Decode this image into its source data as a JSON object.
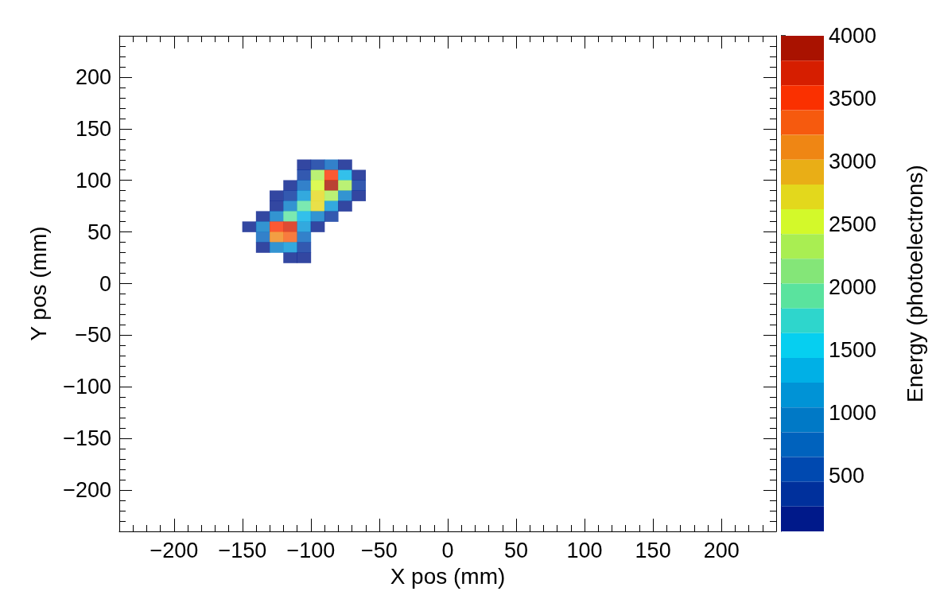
{
  "chart_data": {
    "type": "scatter",
    "marker": "square",
    "xlabel": "X pos (mm)",
    "ylabel": "Y pos (mm)",
    "clabel": "Energy (photoelectrons)",
    "xlim": [
      -240,
      240
    ],
    "ylim": [
      -240,
      240
    ],
    "xticks": [
      {
        "value": -200,
        "label": "−200"
      },
      {
        "value": -150,
        "label": "−150"
      },
      {
        "value": -100,
        "label": "−100"
      },
      {
        "value": -50,
        "label": "−50"
      },
      0,
      50,
      100,
      150,
      200
    ],
    "yticks": [
      {
        "value": -200,
        "label": "−200"
      },
      {
        "value": -150,
        "label": "−150"
      },
      {
        "value": -100,
        "label": "−100"
      },
      {
        "value": -50,
        "label": "−50"
      },
      0,
      50,
      100,
      150,
      200
    ],
    "clim": [
      60,
      4000
    ],
    "cticks": [
      500,
      1000,
      1500,
      2000,
      2500,
      3000,
      3500,
      4000
    ],
    "x": [
      -105,
      -95,
      -85,
      -75,
      -105,
      -95,
      -85,
      -75,
      -65,
      -115,
      -105,
      -95,
      -85,
      -75,
      -65,
      -125,
      -115,
      -105,
      -95,
      -85,
      -75,
      -65,
      -125,
      -115,
      -105,
      -95,
      -85,
      -75,
      -135,
      -125,
      -115,
      -105,
      -95,
      -85,
      -145,
      -135,
      -125,
      -115,
      -105,
      -95,
      -135,
      -125,
      -115,
      -105,
      -135,
      -125,
      -115,
      -105,
      -115,
      -105
    ],
    "values": [
      115,
      115,
      115,
      115,
      105,
      105,
      105,
      105,
      105,
      95,
      95,
      95,
      95,
      95,
      95,
      85,
      85,
      85,
      85,
      85,
      85,
      85,
      75,
      75,
      75,
      75,
      75,
      75,
      65,
      65,
      65,
      65,
      65,
      65,
      55,
      55,
      55,
      55,
      55,
      55,
      45,
      45,
      45,
      45,
      35,
      35,
      35,
      35,
      25,
      25
    ],
    "cvalues": [
      160,
      360,
      750,
      160,
      360,
      2320,
      3500,
      1340,
      160,
      160,
      750,
      2520,
      3900,
      2320,
      360,
      160,
      360,
      1150,
      2720,
      2320,
      950,
      160,
      160,
      950,
      1930,
      2720,
      1150,
      160,
      160,
      950,
      1930,
      1340,
      950,
      360,
      160,
      950,
      3500,
      3700,
      1150,
      160,
      750,
      3100,
      3300,
      750,
      160,
      950,
      1150,
      360,
      160,
      160
    ]
  }
}
